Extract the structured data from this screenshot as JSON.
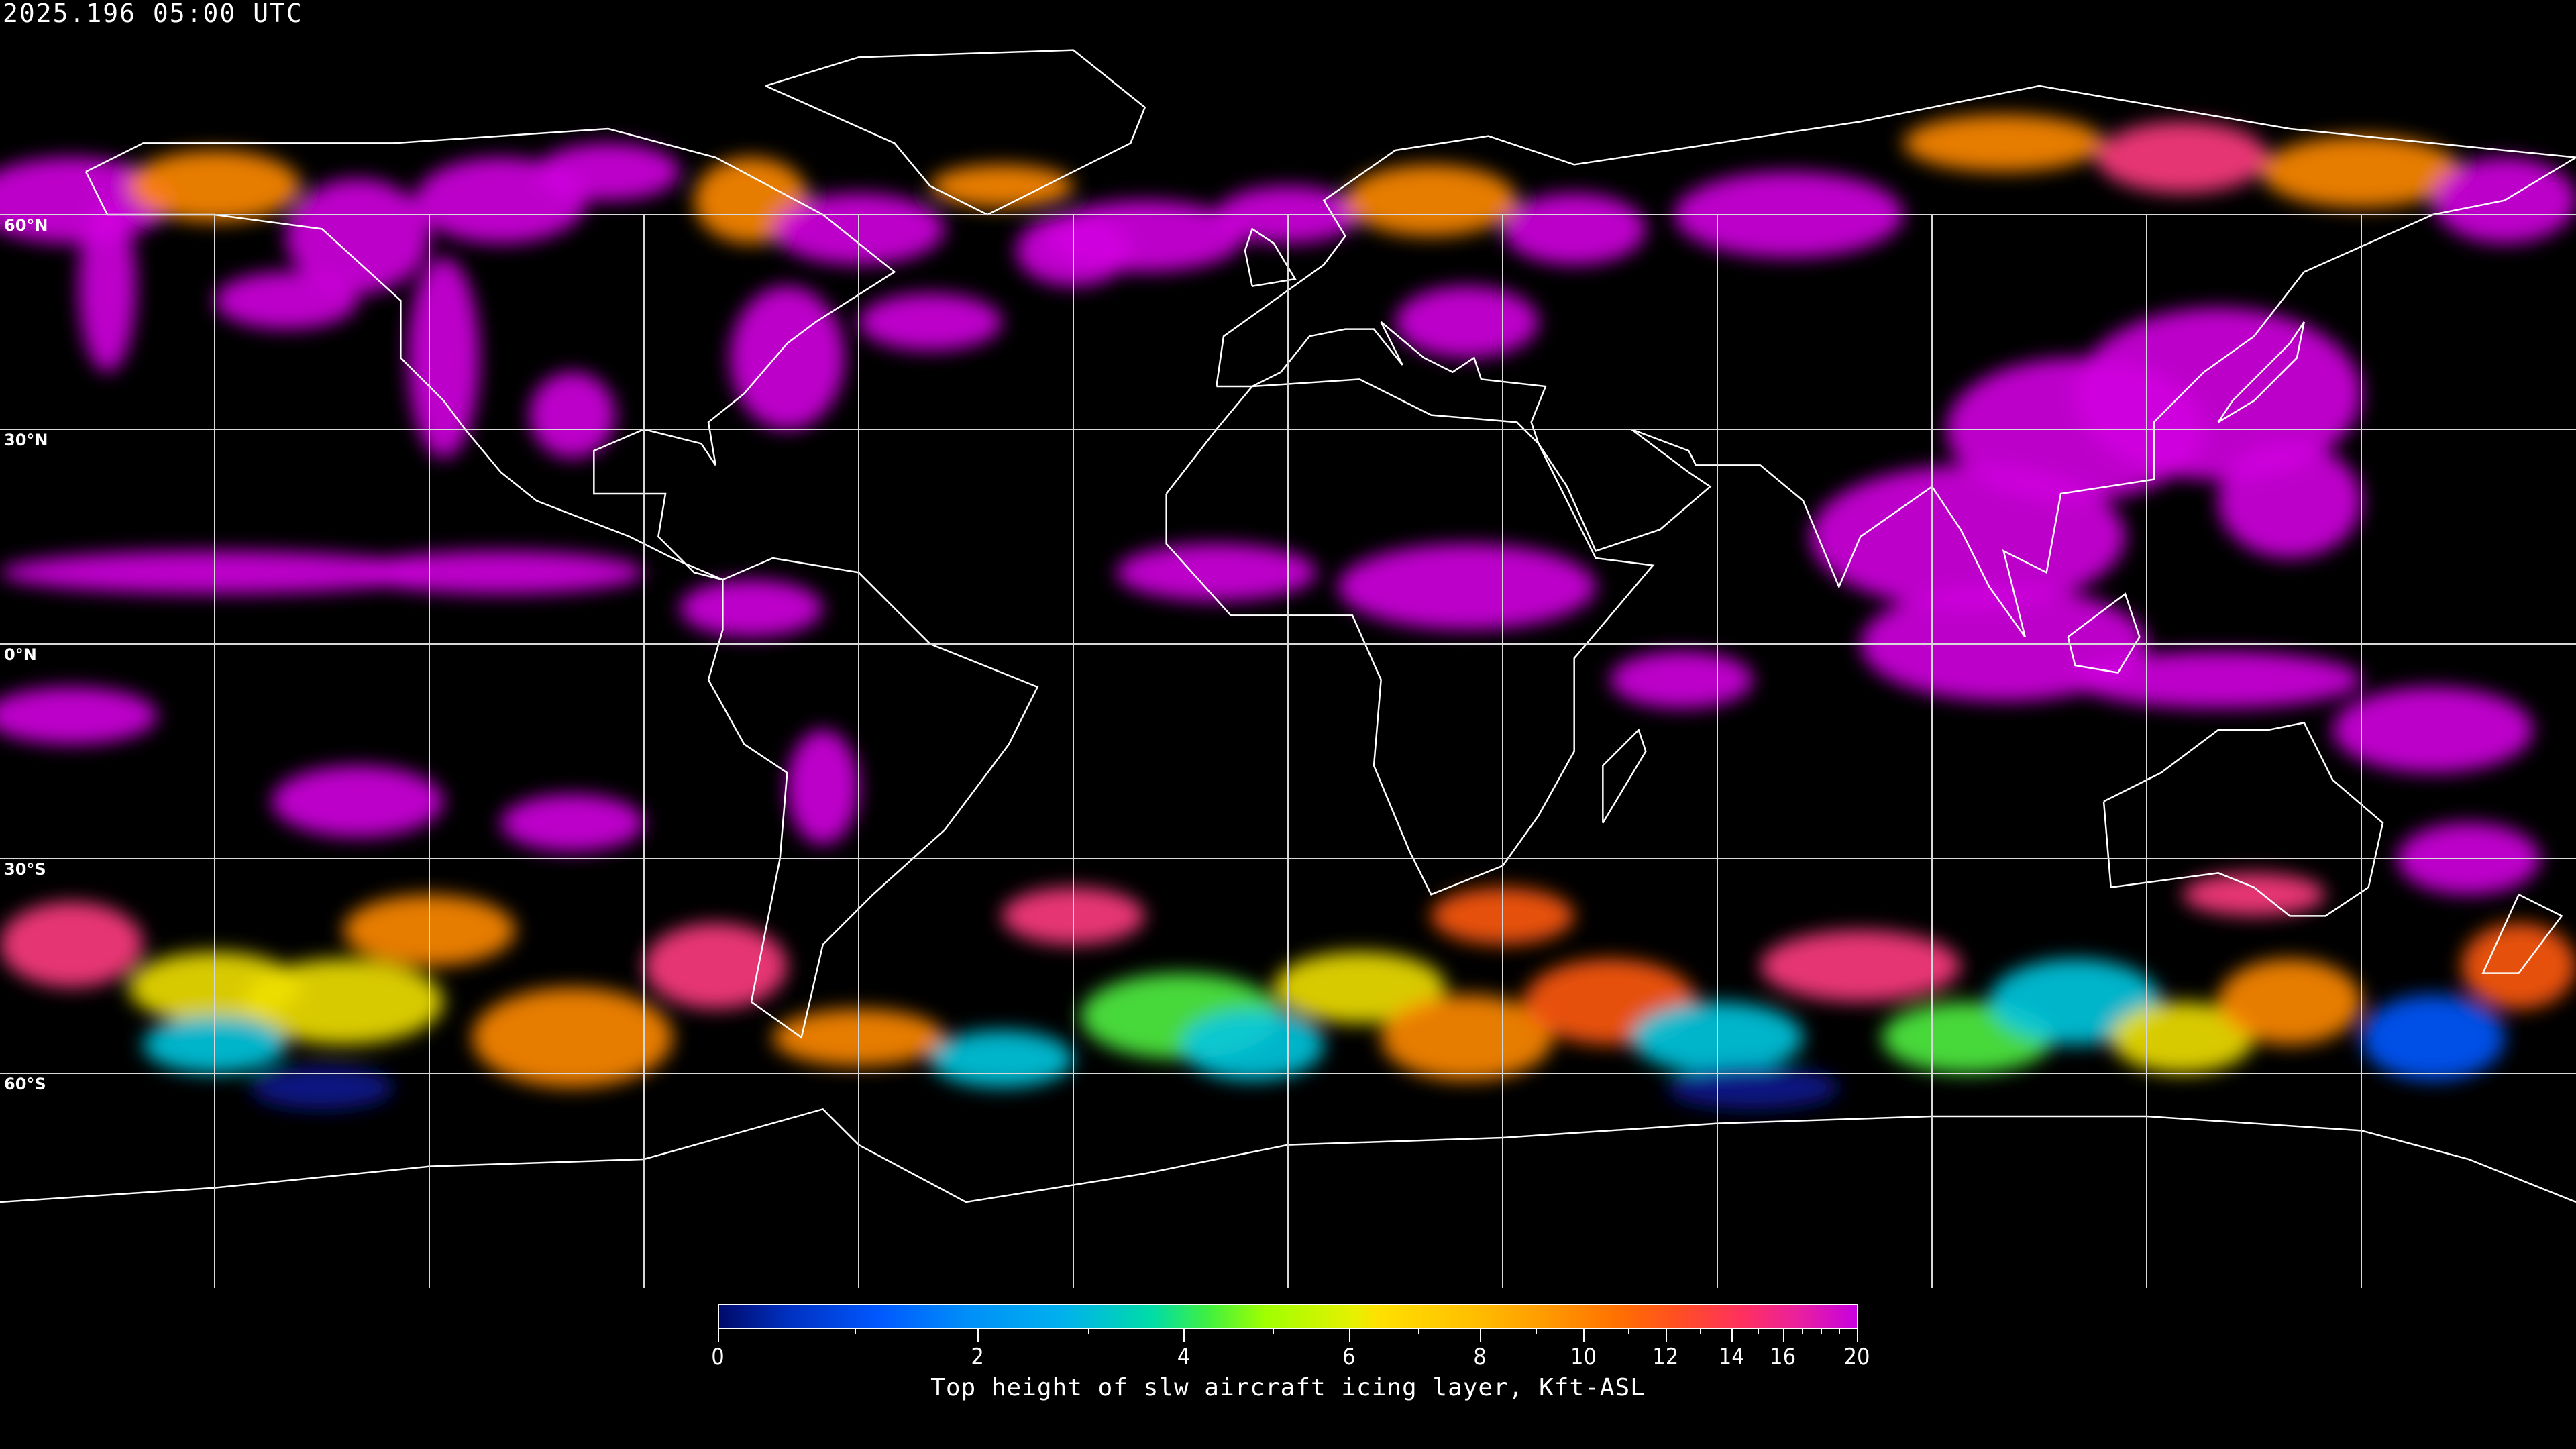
{
  "header": {
    "timestamp": "2025.196 05:00 UTC"
  },
  "map": {
    "projection": "equirectangular",
    "gridline_spacing_deg": 30,
    "background": "#000000",
    "coastline_color": "#ffffff",
    "lat_labels": [
      "60°N",
      "30°N",
      "0°N",
      "30°S",
      "60°S"
    ]
  },
  "colorbar": {
    "title": "Top height of slw aircraft icing layer, Kft-ASL",
    "tick_labels": [
      "0",
      "2",
      "4",
      "6",
      "8",
      "10",
      "12",
      "14",
      "16",
      "20"
    ],
    "range": [
      0,
      20
    ],
    "colors": [
      "#000a6a",
      "#0058ff",
      "#00b0ee",
      "#40f040",
      "#ffe000",
      "#ff7000",
      "#ff3060",
      "#c800e0"
    ]
  }
}
